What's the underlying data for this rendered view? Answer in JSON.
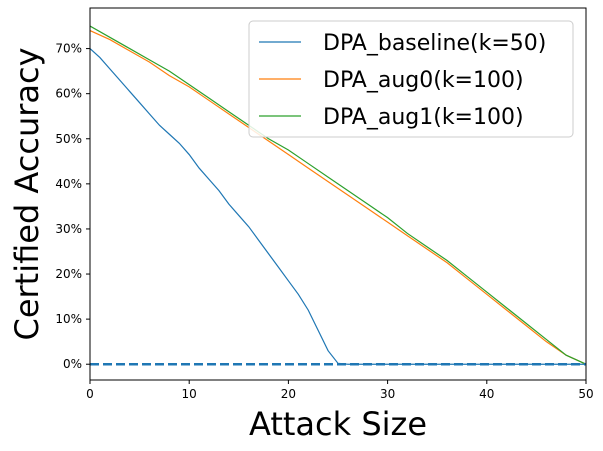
{
  "chart_data": {
    "type": "line",
    "xlabel": "Attack Size",
    "ylabel": "Certified Accuracy",
    "xlim": [
      0,
      50
    ],
    "ylim": [
      -3.5,
      79
    ],
    "x_ticks": [
      0,
      10,
      20,
      30,
      40,
      50
    ],
    "y_ticks": [
      0,
      10,
      20,
      30,
      40,
      50,
      60,
      70
    ],
    "y_tick_labels": [
      "0%",
      "10%",
      "20%",
      "30%",
      "40%",
      "50%",
      "60%",
      "70%"
    ],
    "legend_position": "top-right",
    "grid": false,
    "reference_line": {
      "y": 0,
      "style": "dashed",
      "color": "#1f77b4"
    },
    "series": [
      {
        "name": "DPA_baseline(k=50)",
        "color": "#1f77b4",
        "x": [
          0,
          1,
          2,
          3,
          4,
          5,
          6,
          7,
          8,
          9,
          10,
          11,
          12,
          13,
          14,
          15,
          16,
          17,
          18,
          19,
          20,
          21,
          22,
          23,
          24,
          25,
          26,
          30,
          35,
          40,
          45,
          50
        ],
        "y": [
          70,
          68,
          65.5,
          63,
          60.5,
          58,
          55.5,
          53,
          51,
          49,
          46.5,
          43.5,
          41,
          38.5,
          35.5,
          33,
          30.5,
          27.5,
          24.5,
          21.5,
          18.5,
          15.5,
          12,
          7.5,
          3,
          0.2,
          0,
          0,
          0,
          0,
          0,
          0
        ]
      },
      {
        "name": "DPA_aug0(k=100)",
        "color": "#ff7f0e",
        "x": [
          0,
          2,
          4,
          6,
          8,
          10,
          12,
          14,
          16,
          18,
          20,
          22,
          24,
          26,
          28,
          30,
          32,
          34,
          36,
          38,
          40,
          42,
          44,
          46,
          48,
          50
        ],
        "y": [
          74,
          72,
          69.5,
          67,
          64,
          61.5,
          58.5,
          55.5,
          52.5,
          49.5,
          46.5,
          43.5,
          40.5,
          37.5,
          34.5,
          31.5,
          28.5,
          25.5,
          22.5,
          19,
          15.5,
          12,
          8.5,
          5,
          2,
          0
        ]
      },
      {
        "name": "DPA_aug1(k=100)",
        "color": "#2ca02c",
        "x": [
          0,
          2,
          4,
          6,
          8,
          10,
          12,
          14,
          16,
          18,
          20,
          22,
          24,
          26,
          28,
          30,
          32,
          34,
          36,
          38,
          40,
          42,
          44,
          46,
          48,
          50
        ],
        "y": [
          75,
          72.5,
          70,
          67.5,
          65,
          62,
          59,
          56,
          53,
          50,
          47.5,
          44.5,
          41.5,
          38.5,
          35.5,
          32.5,
          29,
          26,
          23,
          19.5,
          16,
          12.5,
          9,
          5.5,
          2,
          0
        ]
      }
    ]
  }
}
